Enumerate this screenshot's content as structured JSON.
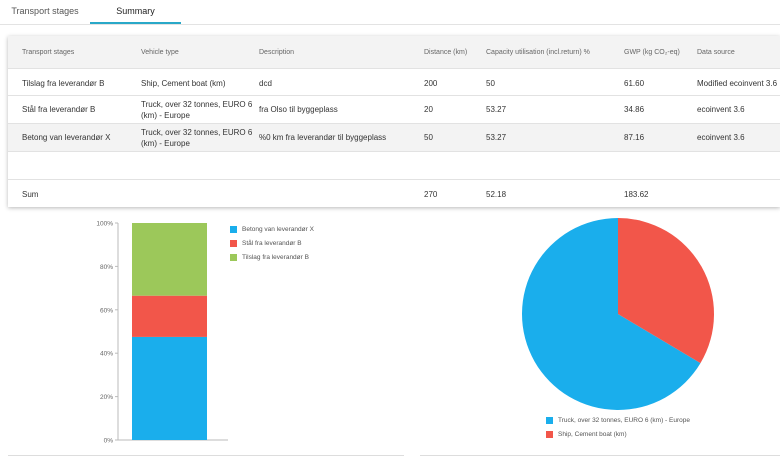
{
  "tabs": [
    {
      "label": "Transport stages"
    },
    {
      "label": "Summary",
      "active": true
    }
  ],
  "table": {
    "headers": [
      "Transport stages",
      "Vehicle type",
      "Description",
      "Distance (km)",
      "Capacity utilisation (incl.return) %",
      "GWP (kg CO₂-eq)",
      "Data source"
    ],
    "rows": [
      [
        "Tilslag fra leverandør B",
        "Ship, Cement boat (km)",
        "dcd",
        "200",
        "50",
        "61.60",
        "Modified ecoinvent 3.6"
      ],
      [
        "Stål fra leverandør B",
        "Truck, over 32 tonnes, EURO 6 (km) - Europe",
        "fra Olso til byggeplass",
        "20",
        "53.27",
        "34.86",
        "ecoinvent 3.6"
      ],
      [
        "Betong van leverandør X",
        "Truck, over 32 tonnes, EURO 6 (km) - Europe",
        "%0 km fra leverandør til byggeplass",
        "50",
        "53.27",
        "87.16",
        "ecoinvent 3.6"
      ]
    ],
    "sum": {
      "label": "Sum",
      "distance": "270",
      "capacity": "52.18",
      "gwp": "183.62"
    }
  },
  "colors": {
    "blue": "#1aaeec",
    "red": "#f2564a",
    "green": "#9cc85a",
    "tab_accent": "#29a8c8"
  },
  "chart_data": [
    {
      "type": "bar",
      "stacked": true,
      "percent": true,
      "yticks": [
        "0%",
        "20%",
        "40%",
        "60%",
        "80%",
        "100%"
      ],
      "ylim": [
        0,
        100
      ],
      "series": [
        {
          "name": "Betong van leverandør X",
          "values": [
            47.5
          ],
          "color": "#1aaeec"
        },
        {
          "name": "Stål fra leverandør B",
          "values": [
            19
          ],
          "color": "#f2564a"
        },
        {
          "name": "Tilslag fra leverandør B",
          "values": [
            33.5
          ],
          "color": "#9cc85a"
        }
      ],
      "legend": "top-right"
    },
    {
      "type": "pie",
      "slices": [
        {
          "name": "Truck, over 32 tonnes, EURO 6 (km) - Europe",
          "value": 122.02,
          "color": "#1aaeec"
        },
        {
          "name": "Ship, Cement boat (km)",
          "value": 61.6,
          "color": "#f2564a"
        }
      ],
      "legend": "bottom"
    }
  ]
}
